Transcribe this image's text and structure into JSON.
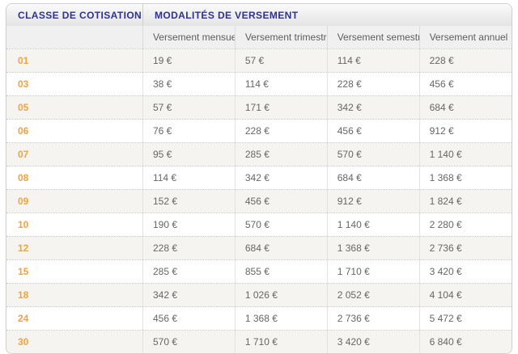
{
  "table": {
    "group_headers": [
      "CLASSE DE COTISATION",
      "MODALITÉS DE VERSEMENT"
    ],
    "columns": [
      "Versement mensuel",
      "Versement trimestriel",
      "Versement semestriel",
      "Versement annuel"
    ],
    "rows": [
      {
        "classe": "01",
        "values": [
          "19 €",
          "57 €",
          "114 €",
          "228 €"
        ]
      },
      {
        "classe": "03",
        "values": [
          "38 €",
          "114 €",
          "228 €",
          "456 €"
        ]
      },
      {
        "classe": "05",
        "values": [
          "57 €",
          "171 €",
          "342 €",
          "684 €"
        ]
      },
      {
        "classe": "06",
        "values": [
          "76 €",
          "228 €",
          "456 €",
          "912 €"
        ]
      },
      {
        "classe": "07",
        "values": [
          "95 €",
          "285 €",
          "570 €",
          "1 140 €"
        ]
      },
      {
        "classe": "08",
        "values": [
          "114 €",
          "342 €",
          "684 €",
          "1 368 €"
        ]
      },
      {
        "classe": "09",
        "values": [
          "152 €",
          "456 €",
          "912 €",
          "1 824 €"
        ]
      },
      {
        "classe": "10",
        "values": [
          "190 €",
          "570 €",
          "1 140 €",
          "2 280 €"
        ]
      },
      {
        "classe": "12",
        "values": [
          "228 €",
          "684 €",
          "1 368 €",
          "2 736 €"
        ]
      },
      {
        "classe": "15",
        "values": [
          "285 €",
          "855 €",
          "1 710 €",
          "3 420 €"
        ]
      },
      {
        "classe": "18",
        "values": [
          "342 €",
          "1 026 €",
          "2 052 €",
          "4 104 €"
        ]
      },
      {
        "classe": "24",
        "values": [
          "456 €",
          "1 368 €",
          "2 736 €",
          "5 472 €"
        ]
      },
      {
        "classe": "30",
        "values": [
          "570 €",
          "1 710 €",
          "3 420 €",
          "6 840 €"
        ]
      }
    ]
  },
  "colors": {
    "header_text_blue": "#2e3192",
    "classe_orange": "#f2a33c",
    "value_gray": "#666666",
    "striped_row_bg": "#f5f4f1",
    "header_bg": "#ededed",
    "border": "#d2d0ce"
  }
}
